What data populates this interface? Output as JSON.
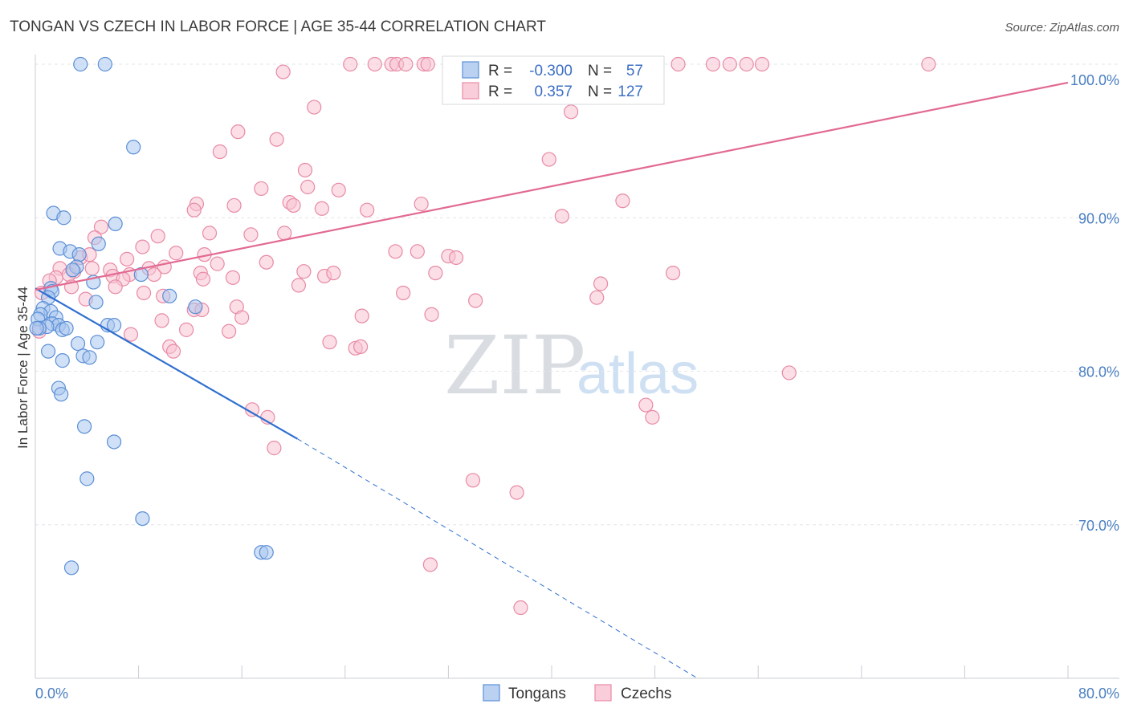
{
  "title": "TONGAN VS CZECH IN LABOR FORCE | AGE 35-44 CORRELATION CHART",
  "source": "Source: ZipAtlas.com",
  "watermark": {
    "zip": "ZIP",
    "atlas": "atlas"
  },
  "colors": {
    "tongans_fill": "#a9c6ef",
    "tongans_stroke": "#5b8fd6",
    "tongans_line": "#2f6fd0",
    "czechs_fill": "#f8c2d1",
    "czechs_stroke": "#e88aa5",
    "czechs_line": "#e26a92",
    "grid": "#e3e6ea",
    "axis_text": "#4a7fc1"
  },
  "stats": {
    "r_label": "R =",
    "n_label": "N =",
    "tongans": {
      "r": "-0.300",
      "n": "57"
    },
    "czechs": {
      "r": "0.357",
      "n": "127"
    }
  },
  "chart_data": {
    "type": "scatter",
    "title": "TONGAN VS CZECH IN LABOR FORCE | AGE 35-44 CORRELATION CHART",
    "xlabel": "",
    "ylabel": "In Labor Force | Age 35-44",
    "xlim": [
      0,
      80
    ],
    "ylim": [
      60,
      100
    ],
    "x_tick_labels": [
      {
        "value": 0,
        "label": "0.0%"
      },
      {
        "value": 80,
        "label": "80.0%"
      }
    ],
    "y_tick_labels": [
      {
        "value": 99,
        "label": "100.0%"
      },
      {
        "value": 90,
        "label": "90.0%"
      },
      {
        "value": 80,
        "label": "80.0%"
      },
      {
        "value": 70,
        "label": "70.0%"
      }
    ],
    "y_gridlines": [
      100,
      90,
      80,
      70
    ],
    "legend": [
      {
        "name": "Tongans"
      },
      {
        "name": "Czechs"
      }
    ],
    "series": [
      {
        "name": "Tongans",
        "points": [
          [
            3.5,
            100
          ],
          [
            5.4,
            100
          ],
          [
            7.6,
            94.6
          ],
          [
            1.4,
            90.3
          ],
          [
            2.2,
            90
          ],
          [
            6.2,
            89.6
          ],
          [
            4.9,
            88.3
          ],
          [
            1.9,
            88
          ],
          [
            2.7,
            87.8
          ],
          [
            3.4,
            87.6
          ],
          [
            3.2,
            86.8
          ],
          [
            2.9,
            86.6
          ],
          [
            4.5,
            85.8
          ],
          [
            8.2,
            86.3
          ],
          [
            1.2,
            85.4
          ],
          [
            1.3,
            85.2
          ],
          [
            1.0,
            84.8
          ],
          [
            4.7,
            84.5
          ],
          [
            10.4,
            84.9
          ],
          [
            12.4,
            84.2
          ],
          [
            0.6,
            84.1
          ],
          [
            1.2,
            83.9
          ],
          [
            0.4,
            83.7
          ],
          [
            1.6,
            83.5
          ],
          [
            0.2,
            83.4
          ],
          [
            1.3,
            83.1
          ],
          [
            1.8,
            83
          ],
          [
            2.1,
            82.7
          ],
          [
            0.9,
            82.9
          ],
          [
            0.3,
            82.8
          ],
          [
            2.4,
            82.8
          ],
          [
            5.6,
            83
          ],
          [
            6.1,
            83
          ],
          [
            4.8,
            81.9
          ],
          [
            3.3,
            81.8
          ],
          [
            1.0,
            81.3
          ],
          [
            3.7,
            81
          ],
          [
            4.2,
            80.9
          ],
          [
            2.1,
            80.7
          ],
          [
            1.8,
            78.9
          ],
          [
            2.0,
            78.5
          ],
          [
            3.8,
            76.4
          ],
          [
            6.1,
            75.4
          ],
          [
            4.0,
            73
          ],
          [
            8.3,
            70.4
          ],
          [
            2.8,
            67.2
          ],
          [
            17.5,
            68.2
          ],
          [
            17.9,
            68.2
          ],
          [
            0.1,
            82.8
          ]
        ]
      },
      {
        "name": "Czechs",
        "points": [
          [
            24.4,
            100
          ],
          [
            26.3,
            100
          ],
          [
            27.6,
            100
          ],
          [
            28,
            100
          ],
          [
            28.7,
            100
          ],
          [
            30.1,
            100
          ],
          [
            30.4,
            100
          ],
          [
            32.1,
            100
          ],
          [
            32.5,
            100
          ],
          [
            35.6,
            100
          ],
          [
            36.4,
            100
          ],
          [
            37.6,
            100
          ],
          [
            38.9,
            100
          ],
          [
            41.4,
            100
          ],
          [
            42.7,
            100
          ],
          [
            44.2,
            100
          ],
          [
            45.3,
            100
          ],
          [
            46.9,
            100
          ],
          [
            49.8,
            100
          ],
          [
            52.5,
            100
          ],
          [
            53.8,
            100
          ],
          [
            55.1,
            100
          ],
          [
            56.3,
            100
          ],
          [
            69.2,
            100
          ],
          [
            19.2,
            99.5
          ],
          [
            21.6,
            97.2
          ],
          [
            41.5,
            96.9
          ],
          [
            15.7,
            95.6
          ],
          [
            18.7,
            95.1
          ],
          [
            14.3,
            94.3
          ],
          [
            39.8,
            93.8
          ],
          [
            20.9,
            93.1
          ],
          [
            17.5,
            91.9
          ],
          [
            21.1,
            92
          ],
          [
            23.5,
            91.8
          ],
          [
            19.7,
            91
          ],
          [
            20.0,
            90.8
          ],
          [
            12.5,
            90.9
          ],
          [
            15.4,
            90.8
          ],
          [
            12.3,
            90.5
          ],
          [
            22.2,
            90.6
          ],
          [
            25.7,
            90.5
          ],
          [
            29.9,
            90.9
          ],
          [
            40.8,
            90.1
          ],
          [
            45.5,
            91.1
          ],
          [
            5.1,
            89.4
          ],
          [
            4.6,
            88.7
          ],
          [
            9.5,
            88.8
          ],
          [
            13.5,
            89
          ],
          [
            16.7,
            88.9
          ],
          [
            19.3,
            89
          ],
          [
            8.3,
            88.1
          ],
          [
            27.9,
            87.8
          ],
          [
            29.6,
            87.8
          ],
          [
            10.9,
            87.7
          ],
          [
            13.1,
            87.6
          ],
          [
            7.1,
            87.3
          ],
          [
            3.5,
            87.4
          ],
          [
            4.2,
            87.6
          ],
          [
            17.9,
            87.1
          ],
          [
            14.1,
            87
          ],
          [
            32.0,
            87.5
          ],
          [
            32.6,
            87.4
          ],
          [
            1.9,
            86.7
          ],
          [
            3.0,
            86.5
          ],
          [
            4.4,
            86.7
          ],
          [
            5.8,
            86.6
          ],
          [
            7.3,
            86.3
          ],
          [
            8.8,
            86.7
          ],
          [
            10.0,
            86.8
          ],
          [
            12.8,
            86.4
          ],
          [
            15.3,
            86.1
          ],
          [
            20.8,
            86.5
          ],
          [
            22.4,
            86.2
          ],
          [
            23.1,
            86.4
          ],
          [
            31.0,
            86.4
          ],
          [
            49.4,
            86.4
          ],
          [
            1.6,
            86.1
          ],
          [
            2.6,
            86.3
          ],
          [
            6.0,
            86.2
          ],
          [
            6.8,
            86
          ],
          [
            9.2,
            86.3
          ],
          [
            13.0,
            86
          ],
          [
            2.8,
            85.5
          ],
          [
            6.2,
            85.5
          ],
          [
            8.4,
            85.1
          ],
          [
            20.4,
            85.6
          ],
          [
            28.5,
            85.1
          ],
          [
            43.8,
            85.7
          ],
          [
            3.9,
            84.7
          ],
          [
            9.9,
            84.9
          ],
          [
            34.1,
            84.6
          ],
          [
            43.5,
            84.8
          ],
          [
            1.1,
            85.9
          ],
          [
            12.3,
            84
          ],
          [
            12.9,
            84
          ],
          [
            15.6,
            84.2
          ],
          [
            16.0,
            83.5
          ],
          [
            25.3,
            83.6
          ],
          [
            30.7,
            83.7
          ],
          [
            9.8,
            83.3
          ],
          [
            11.7,
            82.7
          ],
          [
            15.0,
            82.6
          ],
          [
            7.4,
            82.4
          ],
          [
            22.8,
            81.9
          ],
          [
            10.4,
            81.6
          ],
          [
            10.7,
            81.3
          ],
          [
            24.8,
            81.5
          ],
          [
            25.2,
            81.6
          ],
          [
            58.4,
            79.9
          ],
          [
            47.3,
            77.8
          ],
          [
            47.8,
            77
          ],
          [
            16.8,
            77.5
          ],
          [
            18.0,
            77
          ],
          [
            18.5,
            75
          ],
          [
            33.9,
            72.9
          ],
          [
            37.3,
            72.1
          ],
          [
            30.6,
            67.4
          ],
          [
            37.6,
            64.6
          ],
          [
            0.3,
            82.6
          ],
          [
            0.5,
            85.1
          ]
        ]
      }
    ],
    "trend_lines": [
      {
        "series": "Tongans",
        "style": "solid",
        "from": [
          0,
          85.4
        ],
        "to": [
          20.3,
          75.6
        ]
      },
      {
        "series": "Tongans",
        "style": "dashed",
        "from": [
          20.3,
          75.6
        ],
        "to": [
          51.3,
          60
        ]
      },
      {
        "series": "Czechs",
        "style": "solid",
        "from": [
          0,
          85.3
        ],
        "to": [
          80,
          98.8
        ]
      }
    ]
  }
}
